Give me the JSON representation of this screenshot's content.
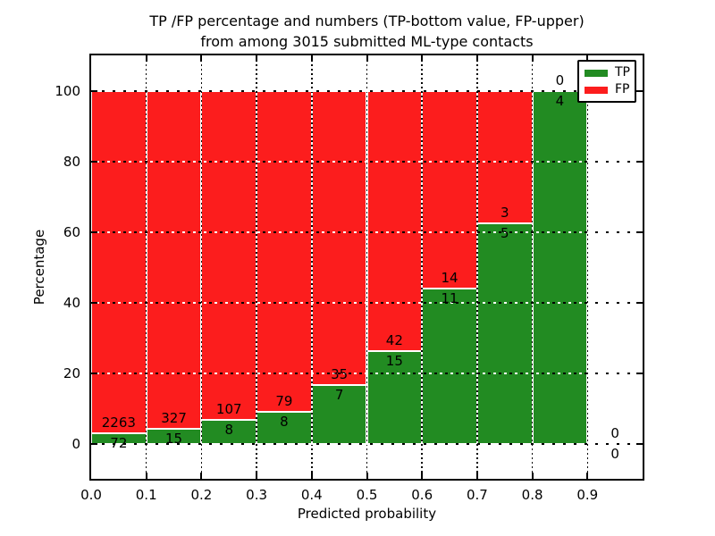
{
  "title": {
    "line1": "TP /FP percentage and numbers (TP-bottom value, FP-upper)",
    "line2": "from among 3015 submitted ML-type contacts"
  },
  "axes": {
    "ylabel": "Percentage",
    "xlabel": "Predicted probability",
    "ytick_labels": [
      "0",
      "20",
      "40",
      "60",
      "80",
      "100"
    ],
    "ytick_values": [
      0,
      20,
      40,
      60,
      80,
      100
    ],
    "xtick_labels": [
      "0.0",
      "0.1",
      "0.2",
      "0.3",
      "0.4",
      "0.5",
      "0.6",
      "0.7",
      "0.8",
      "0.9"
    ],
    "xtick_values": [
      0.0,
      0.1,
      0.2,
      0.3,
      0.4,
      0.5,
      0.6,
      0.7,
      0.8,
      0.9
    ]
  },
  "legend": [
    {
      "label": "TP",
      "color": "#228b22"
    },
    {
      "label": "FP",
      "color": "#fc1d1d"
    }
  ],
  "colors": {
    "tp": "#228b22",
    "fp": "#fc1d1d",
    "bar_edge": "#ffffff",
    "grid": "#000000",
    "text": "#000000"
  },
  "chart_data": {
    "type": "bar",
    "stacked": true,
    "normalized_to_percent": 100,
    "title": "TP /FP percentage and numbers (TP-bottom value, FP-upper) from among 3015 submitted ML-type contacts",
    "xlabel": "Predicted probability",
    "ylabel": "Percentage",
    "xlim": [
      0.0,
      1.0
    ],
    "ylim": [
      -10,
      110
    ],
    "grid": true,
    "legend_position": "upper right",
    "bin_width": 0.1,
    "total_contacts": 3015,
    "bins": [
      {
        "x0": 0.0,
        "x1": 0.1,
        "tp": 72,
        "fp": 2263,
        "tp_pct": 3.08,
        "has_bar": true
      },
      {
        "x0": 0.1,
        "x1": 0.2,
        "tp": 15,
        "fp": 327,
        "tp_pct": 4.39,
        "has_bar": true
      },
      {
        "x0": 0.2,
        "x1": 0.3,
        "tp": 8,
        "fp": 107,
        "tp_pct": 6.96,
        "has_bar": true
      },
      {
        "x0": 0.3,
        "x1": 0.4,
        "tp": 8,
        "fp": 79,
        "tp_pct": 9.2,
        "has_bar": true
      },
      {
        "x0": 0.4,
        "x1": 0.5,
        "tp": 7,
        "fp": 35,
        "tp_pct": 16.67,
        "has_bar": true
      },
      {
        "x0": 0.5,
        "x1": 0.6,
        "tp": 15,
        "fp": 42,
        "tp_pct": 26.32,
        "has_bar": true
      },
      {
        "x0": 0.6,
        "x1": 0.7,
        "tp": 11,
        "fp": 14,
        "tp_pct": 44.0,
        "has_bar": true
      },
      {
        "x0": 0.7,
        "x1": 0.8,
        "tp": 5,
        "fp": 3,
        "tp_pct": 62.5,
        "has_bar": true
      },
      {
        "x0": 0.8,
        "x1": 0.9,
        "tp": 4,
        "fp": 0,
        "tp_pct": 100.0,
        "has_bar": true
      },
      {
        "x0": 0.9,
        "x1": 1.0,
        "tp": 0,
        "fp": 0,
        "tp_pct": 0.0,
        "has_bar": false
      }
    ]
  }
}
